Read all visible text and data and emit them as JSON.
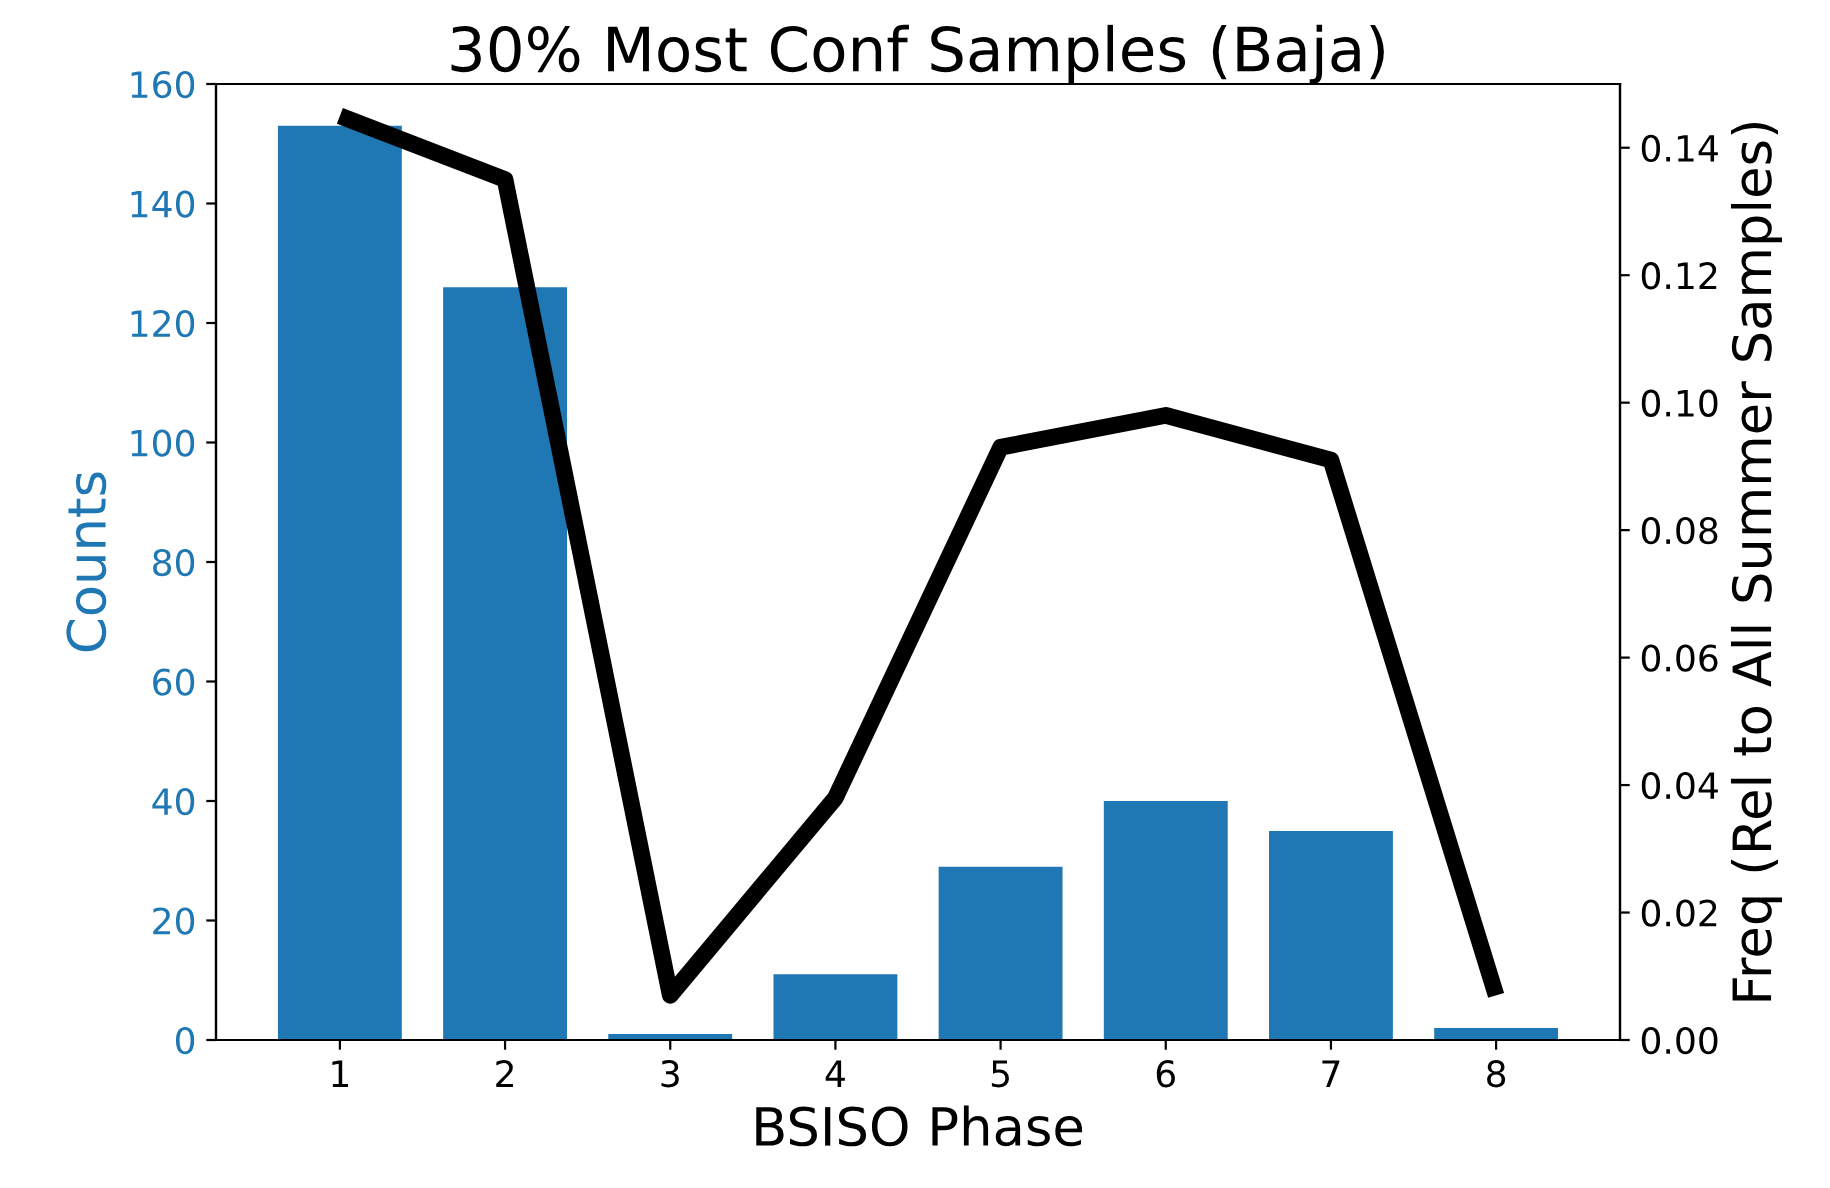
{
  "chart_data": {
    "type": "bar",
    "title": "30% Most Conf Samples (Baja)",
    "xlabel": "BSISO Phase",
    "ylabel": "Counts",
    "y2label": "Freq (Rel to All Summer Samples)",
    "x": [
      1,
      2,
      3,
      4,
      5,
      6,
      7,
      8
    ],
    "series": [
      {
        "color": "#1f77b4",
        "values": [
          153,
          126,
          1,
          11,
          29,
          40,
          35,
          2
        ]
      },
      {
        "type": "line",
        "axis": "y2",
        "color": "#000000",
        "values": [
          0.145,
          0.135,
          0.007,
          0.038,
          0.093,
          0.098,
          0.091,
          0.007
        ]
      }
    ],
    "xlim": [
      0.25,
      8.75
    ],
    "xticks": [
      1,
      2,
      3,
      4,
      5,
      6,
      7,
      8
    ],
    "ylim": [
      0,
      160
    ],
    "yticks": [
      0,
      20,
      40,
      60,
      80,
      100,
      120,
      140,
      160
    ],
    "y2lim": [
      0,
      0.15
    ],
    "y2ticks": [
      {
        "value": 0,
        "label": "0.00"
      },
      {
        "value": 0.02,
        "label": "0.02"
      },
      {
        "value": 0.04,
        "label": "0.04"
      },
      {
        "value": 0.06,
        "label": "0.06"
      },
      {
        "value": 0.08,
        "label": "0.08"
      },
      {
        "value": 0.1,
        "label": "0.10"
      },
      {
        "value": 0.12,
        "label": "0.12"
      },
      {
        "value": 0.14,
        "label": "0.14"
      }
    ],
    "grid": false,
    "legend": false,
    "marker": "none",
    "line_style": "solid"
  }
}
